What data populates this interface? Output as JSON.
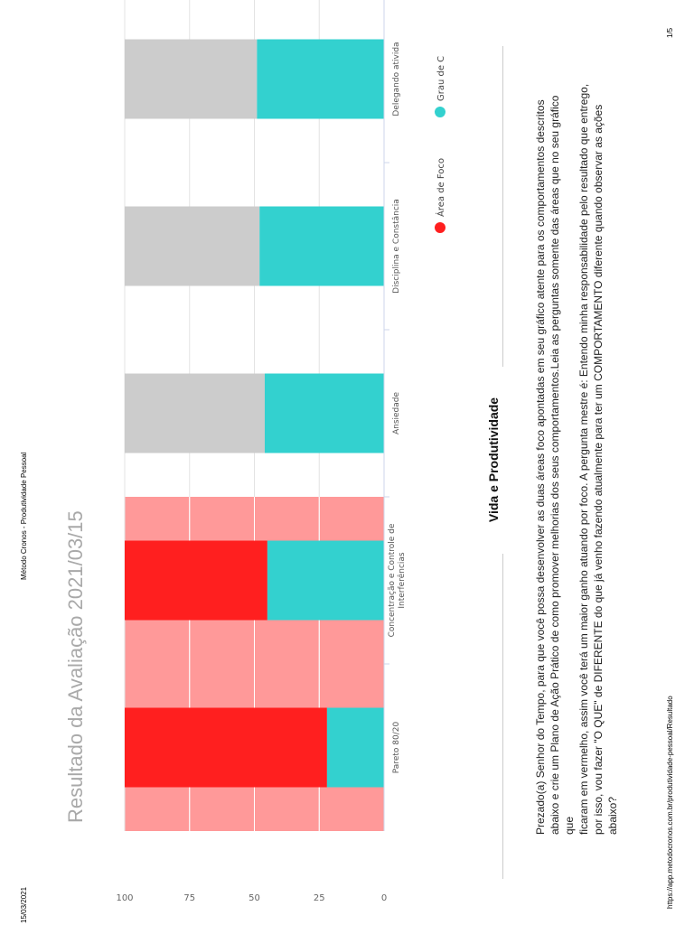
{
  "header": {
    "date": "15/03/2021",
    "site_title": "Método Cronos - Produtividade Pessoal"
  },
  "footer": {
    "url": "https://app.metodocronos.com.br/produtividade-pessoal/Resultado",
    "page": "1/5"
  },
  "title": "Resultado da Avaliação 2021/03/15",
  "chart_data": {
    "type": "bar",
    "categories": [
      "Pareto 80/20",
      "Concentração e Controle de Interferências",
      "Ansiedade",
      "Disciplina e Constância",
      "Delegando atividades"
    ],
    "visible_category_labels": [
      "Pareto 80/20",
      "Concentração e Controle de",
      "Interferências",
      "Ansiedade",
      "Disciplina e Constância",
      "Delegando ativida"
    ],
    "series": [
      {
        "name": "Área de Foco",
        "color": "#ff1f1f",
        "values": [
          78,
          55,
          54,
          52,
          51
        ],
        "focus": [
          true,
          true,
          false,
          false,
          false
        ]
      },
      {
        "name": "Grau de Competência",
        "color": "#33d1cf",
        "values": [
          22,
          45,
          46,
          48,
          49
        ]
      }
    ],
    "highlight_color": "#ff9999",
    "non_focus_color": "#cccccc",
    "ylim": [
      0,
      100
    ],
    "yticks": [
      0,
      25,
      50,
      75,
      100
    ],
    "legend_labels": [
      "Área de Foco",
      "Grau de C"
    ],
    "grid": true
  },
  "section": {
    "title": "Vida e Produtividade",
    "lines": [
      "Prezado(a) Senhor do Tempo, para que você possa desenvolver as duas áreas foco apontadas em seu gráfico atente para os comportamentos descritos",
      "abaixo e crie um Plano de Ação Prático de como promover melhorias dos seus comportamentos.Leia as perguntas somente das áreas que no seu gráfico que",
      "ficaram em vermelho, assim você terá um maior ganho atuando por foco. A pergunta mestre é: Entendo minha responsabilidade pelo resultado que entrego,",
      "por isso, vou fazer \"O QUE\" de DIFERENTE do que já venho fazendo atualmente para ter um COMPORTAMENTO diferente quando observar as ações",
      "abaixo?"
    ]
  }
}
